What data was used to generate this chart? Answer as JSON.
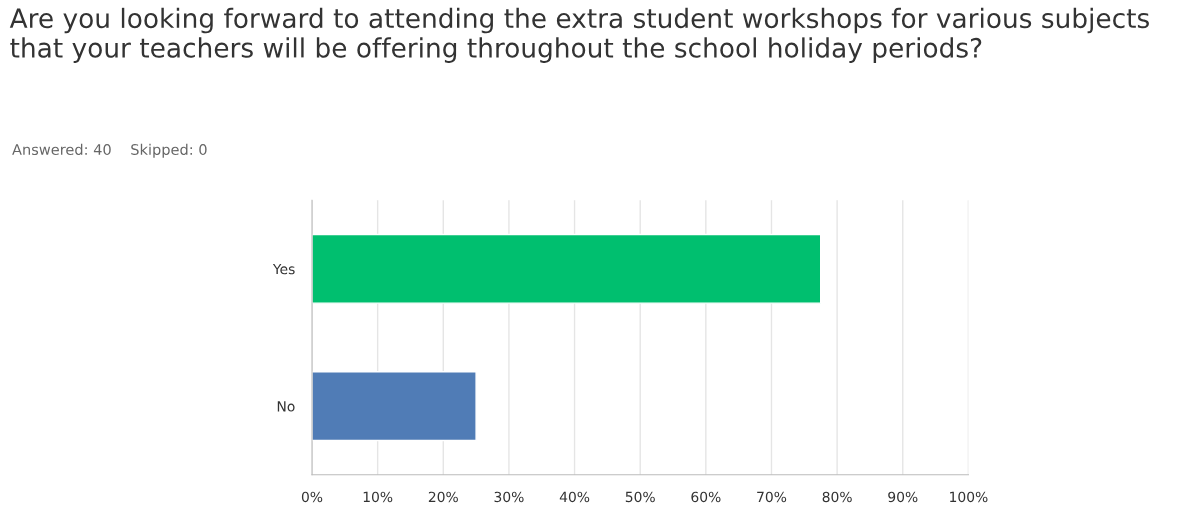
{
  "chart_data": {
    "type": "bar",
    "orientation": "horizontal",
    "title": "Are you looking forward to attending the extra student workshops for various subjects that your teachers will be offering throughout the school holiday periods?",
    "subtitle": "Answered: 40    Skipped: 0",
    "categories": [
      "Yes",
      "No"
    ],
    "values": [
      77.5,
      25
    ],
    "colors": [
      "#00bf6f",
      "#507cb6"
    ],
    "xlim": [
      0,
      100
    ],
    "xticks": [
      {
        "value": 0,
        "label": "0%"
      },
      {
        "value": 10,
        "label": "10%"
      },
      {
        "value": 20,
        "label": "20%"
      },
      {
        "value": 30,
        "label": "30%"
      },
      {
        "value": 40,
        "label": "40%"
      },
      {
        "value": 50,
        "label": "50%"
      },
      {
        "value": 60,
        "label": "60%"
      },
      {
        "value": 70,
        "label": "70%"
      },
      {
        "value": 80,
        "label": "80%"
      },
      {
        "value": 90,
        "label": "90%"
      },
      {
        "value": 100,
        "label": "100%"
      }
    ],
    "grid": "x",
    "legend": false
  }
}
